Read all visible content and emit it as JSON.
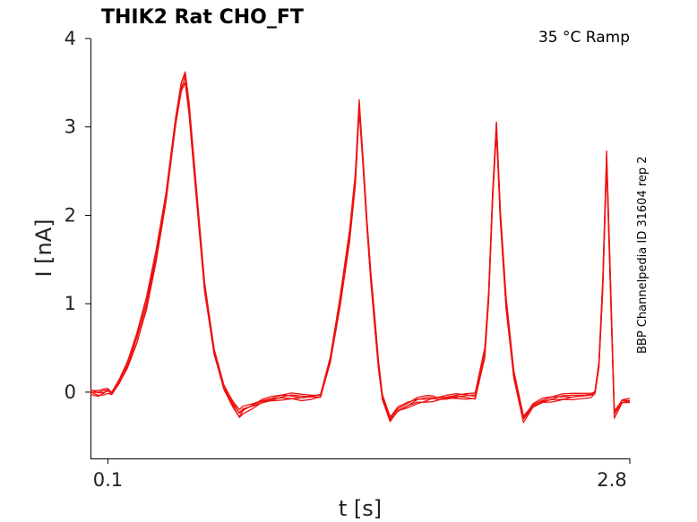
{
  "chart_data": {
    "type": "line",
    "title": "THIK2  Rat  CHO_FT",
    "condition": "35 °C  Ramp",
    "side_label": "BBP Channelpedia ID 31604 rep 2",
    "xlabel": "t [s]",
    "ylabel": "I [nA]",
    "x_ticks": [
      0.1,
      2.8
    ],
    "y_ticks": [
      0,
      1,
      2,
      3,
      4
    ],
    "xlim": [
      0.01,
      2.8
    ],
    "ylim": [
      -0.75,
      4
    ],
    "trace_color": "#ee1111",
    "series": [
      {
        "x": [
          0.01,
          0.05,
          0.08,
          0.1,
          0.12,
          0.16,
          0.2,
          0.25,
          0.3,
          0.35,
          0.4,
          0.45,
          0.48,
          0.5,
          0.52,
          0.55,
          0.6,
          0.65,
          0.7,
          0.75,
          0.78,
          0.8,
          0.85,
          0.9,
          0.95,
          1.0,
          1.05,
          1.1,
          1.15,
          1.2,
          1.25,
          1.3,
          1.35,
          1.38,
          1.4,
          1.42,
          1.44,
          1.46,
          1.48,
          1.5,
          1.52,
          1.56,
          1.6,
          1.65,
          1.7,
          1.75,
          1.78,
          1.8,
          1.85,
          1.9,
          1.95,
          2.0,
          2.05,
          2.07,
          2.09,
          2.11,
          2.13,
          2.16,
          2.2,
          2.25,
          2.3,
          2.35,
          2.4,
          2.45,
          2.5,
          2.6,
          2.62,
          2.64,
          2.66,
          2.68,
          2.7,
          2.72,
          2.76,
          2.8
        ],
        "y": [
          0.0,
          -0.02,
          0.0,
          0.02,
          -0.01,
          0.12,
          0.3,
          0.6,
          1.0,
          1.55,
          2.2,
          3.05,
          3.45,
          3.55,
          3.2,
          2.45,
          1.2,
          0.45,
          0.05,
          -0.15,
          -0.25,
          -0.2,
          -0.15,
          -0.1,
          -0.08,
          -0.06,
          -0.05,
          -0.06,
          -0.05,
          -0.04,
          0.35,
          1.0,
          1.75,
          2.4,
          3.25,
          2.6,
          1.9,
          1.3,
          0.8,
          0.3,
          -0.05,
          -0.3,
          -0.2,
          -0.15,
          -0.1,
          -0.08,
          -0.07,
          -0.07,
          -0.06,
          -0.05,
          -0.05,
          -0.05,
          0.45,
          1.1,
          2.2,
          3.0,
          2.0,
          1.0,
          0.2,
          -0.3,
          -0.15,
          -0.1,
          -0.08,
          -0.06,
          -0.05,
          -0.03,
          0.0,
          0.3,
          1.2,
          2.65,
          1.2,
          -0.25,
          -0.1,
          -0.1
        ]
      }
    ]
  }
}
